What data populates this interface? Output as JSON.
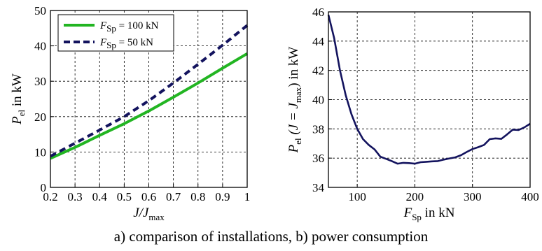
{
  "caption": "a) comparison of installations, b) power consumption",
  "chart_data": [
    {
      "type": "line",
      "panel": "a",
      "xlabel": {
        "main": "J/J",
        "sub": "max"
      },
      "ylabel": {
        "main": "P",
        "sub": "el",
        "rest": " in kW"
      },
      "xlim": [
        0.2,
        1.0
      ],
      "ylim": [
        0,
        50
      ],
      "xticks": [
        0.2,
        0.3,
        0.4,
        0.5,
        0.6,
        0.7,
        0.8,
        0.9,
        1.0
      ],
      "xtick_labels": [
        "0.2",
        "0.3",
        "0.4",
        "0.5",
        "0.6",
        "0.7",
        "0.8",
        "0.9",
        "1"
      ],
      "yticks": [
        0,
        10,
        20,
        30,
        40,
        50
      ],
      "ytick_labels": [
        "0",
        "10",
        "20",
        "30",
        "40",
        "50"
      ],
      "grid": true,
      "legend_position": "top-left",
      "series": [
        {
          "name": {
            "main": "F",
            "sub": "Sp",
            "rest": " = 100 kN"
          },
          "color": "#22b522",
          "dash": "solid",
          "x": [
            0.2,
            0.3,
            0.4,
            0.5,
            0.6,
            0.7,
            0.8,
            0.9,
            1.0
          ],
          "y": [
            8.2,
            11.3,
            14.7,
            18.0,
            21.6,
            25.5,
            29.5,
            33.7,
            37.8
          ]
        },
        {
          "name": {
            "main": "F",
            "sub": "Sp",
            "rest": " = 50 kN"
          },
          "color": "#13135e",
          "dash": "dashed",
          "x": [
            0.2,
            0.3,
            0.4,
            0.5,
            0.6,
            0.7,
            0.8,
            0.9,
            1.0
          ],
          "y": [
            8.8,
            12.5,
            16.2,
            20.0,
            24.5,
            29.5,
            34.8,
            40.2,
            45.8
          ]
        }
      ]
    },
    {
      "type": "line",
      "panel": "b",
      "xlabel": {
        "main": "F",
        "sub": "Sp",
        "rest": " in kN"
      },
      "ylabel": {
        "main": "P",
        "sub": "el",
        "mid": " (J = J",
        "sub2": "max",
        "rest": ") in kW"
      },
      "xlim": [
        50,
        400
      ],
      "ylim": [
        34,
        46
      ],
      "xticks": [
        100,
        200,
        300,
        400
      ],
      "xtick_labels": [
        "100",
        "200",
        "300",
        "400"
      ],
      "yticks": [
        34,
        36,
        38,
        40,
        42,
        44,
        46
      ],
      "ytick_labels": [
        "34",
        "36",
        "38",
        "40",
        "42",
        "44",
        "46"
      ],
      "grid": true,
      "series": [
        {
          "color": "#13135e",
          "dash": "solid",
          "x": [
            50,
            60,
            70,
            80,
            90,
            100,
            110,
            120,
            130,
            140,
            150,
            160,
            170,
            180,
            190,
            200,
            210,
            220,
            230,
            240,
            250,
            260,
            270,
            280,
            290,
            300,
            310,
            320,
            330,
            340,
            350,
            360,
            370,
            380,
            390,
            400
          ],
          "y": [
            45.8,
            44.2,
            42.0,
            40.3,
            39.0,
            38.0,
            37.3,
            36.9,
            36.6,
            36.1,
            35.95,
            35.8,
            35.62,
            35.68,
            35.66,
            35.62,
            35.72,
            35.75,
            35.78,
            35.8,
            35.9,
            35.98,
            36.05,
            36.2,
            36.42,
            36.62,
            36.75,
            36.9,
            37.3,
            37.35,
            37.32,
            37.62,
            37.95,
            37.92,
            38.1,
            38.35
          ]
        }
      ]
    }
  ]
}
